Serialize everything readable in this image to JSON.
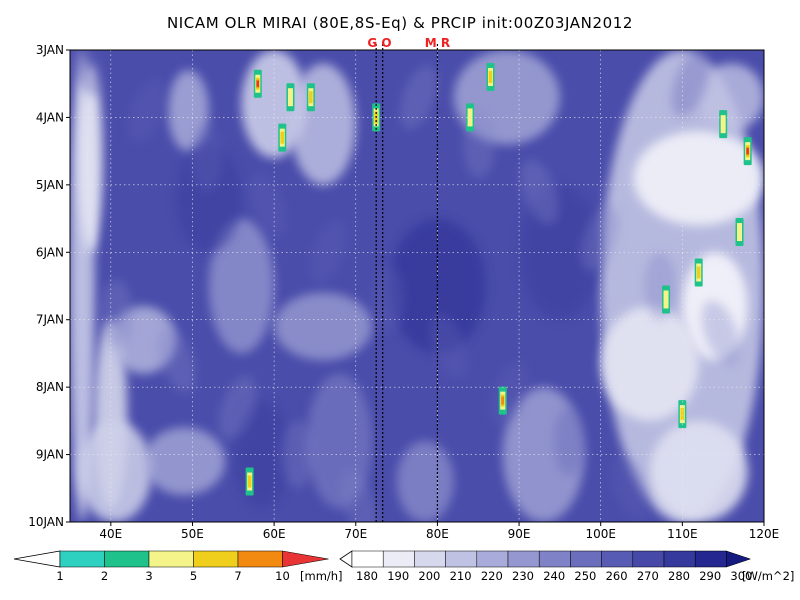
{
  "title": "NICAM OLR MIRAI (80E,8S-Eq) & PRCIP init:00Z03JAN2012",
  "chart_data": {
    "type": "heatmap",
    "title": "NICAM OLR MIRAI (80E,8S-Eq) & PRCIP init:00Z03JAN2012",
    "x_axis": {
      "unit": "longitude",
      "range": [
        35,
        120
      ],
      "ticks": [
        "40E",
        "50E",
        "60E",
        "70E",
        "80E",
        "90E",
        "100E",
        "110E",
        "120E"
      ]
    },
    "y_axis": {
      "unit": "date",
      "range": [
        "3JAN",
        "10JAN"
      ],
      "inverted": true,
      "ticks": [
        "3JAN",
        "4JAN",
        "5JAN",
        "6JAN",
        "7JAN",
        "8JAN",
        "9JAN",
        "10JAN"
      ]
    },
    "grid": true,
    "markers": [
      {
        "label": "GO",
        "longitude": [
          72.5,
          73.3
        ],
        "style": "dotted vertical line"
      },
      {
        "label": "MR",
        "longitude": 80.0,
        "style": "dotted vertical line"
      }
    ],
    "precip_colorbar": {
      "unit": "[mm/h]",
      "levels": [
        "1",
        "2",
        "3",
        "5",
        "7",
        "10"
      ],
      "colors": [
        "#2ed0c0",
        "#1ec28a",
        "#f4f48a",
        "#f0cf1c",
        "#f28a12",
        "#e83434"
      ]
    },
    "olr_colorbar": {
      "unit": "[W/m^2]",
      "levels": [
        "180",
        "190",
        "200",
        "210",
        "220",
        "230",
        "240",
        "250",
        "260",
        "270",
        "280",
        "290",
        "300"
      ],
      "colors": [
        "#ffffff",
        "#ececf6",
        "#d6d8ee",
        "#c0c2e4",
        "#a9acda",
        "#9497d0",
        "#7f82c6",
        "#6b6ebd",
        "#585bb3",
        "#4649a8",
        "#35389c",
        "#23278f",
        "#141a7f"
      ]
    },
    "olr_field_summary": "low OLR (deep blue) dominant; high OLR (pale) bands near 35-50E and east of 100E",
    "precip_spots": [
      {
        "lon": 58,
        "date": "3.5JAN",
        "max_mmh": 10
      },
      {
        "lon": 62,
        "date": "3.7JAN",
        "max_mmh": 3
      },
      {
        "lon": 64.5,
        "date": "3.7JAN",
        "max_mmh": 5
      },
      {
        "lon": 61,
        "date": "4.3JAN",
        "max_mmh": 5
      },
      {
        "lon": 72.5,
        "date": "4.0JAN",
        "max_mmh": 5
      },
      {
        "lon": 86.5,
        "date": "3.4JAN",
        "max_mmh": 5
      },
      {
        "lon": 84,
        "date": "4.0JAN",
        "max_mmh": 3
      },
      {
        "lon": 118,
        "date": "4.5JAN",
        "max_mmh": 10
      },
      {
        "lon": 115,
        "date": "4.1JAN",
        "max_mmh": 3
      },
      {
        "lon": 112,
        "date": "6.3JAN",
        "max_mmh": 5
      },
      {
        "lon": 117,
        "date": "5.7JAN",
        "max_mmh": 3
      },
      {
        "lon": 108,
        "date": "6.7JAN",
        "max_mmh": 3
      },
      {
        "lon": 88,
        "date": "8.2JAN",
        "max_mmh": 7
      },
      {
        "lon": 110,
        "date": "8.4JAN",
        "max_mmh": 5
      },
      {
        "lon": 57,
        "date": "9.4JAN",
        "max_mmh": 5
      }
    ]
  }
}
